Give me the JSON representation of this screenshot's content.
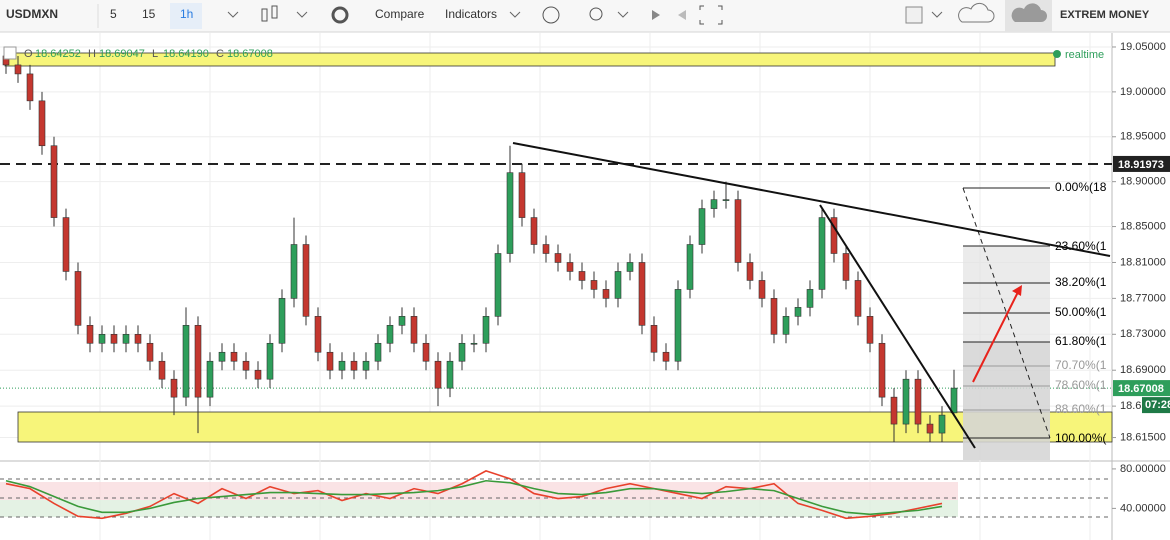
{
  "toolbar": {
    "symbol": "USDMXN",
    "intervals": [
      "5",
      "15",
      "1h"
    ],
    "compare": "Compare",
    "indicators": "Indicators",
    "account": "EXTREM MONEY"
  },
  "ohlc_header": [
    {
      "label": "O",
      "value_label": "18.64252"
    },
    {
      "label": "H",
      "value_label": "18.69047"
    },
    {
      "label": "L",
      "value_label": "18.64190"
    },
    {
      "label": "C",
      "value_label": "18.67008"
    }
  ],
  "realtime": "realtime",
  "fib_labels": [
    "0.00%(18",
    "23.60%(1",
    "38.20%(1",
    "50.00%(1",
    "61.80%(1",
    "70.70%(1",
    "78.60%(1",
    "88.60%(1",
    "100.00%("
  ],
  "chart_data": [
    {
      "type": "candlestick",
      "up_color": "#2e9e5b",
      "down_color": "#c4372f",
      "grid": true,
      "ylim": [
        18.59,
        19.06
      ],
      "yticks": [
        {
          "value": 19.05,
          "label": "19.05000"
        },
        {
          "value": 19.0,
          "label": "19.00000"
        },
        {
          "value": 18.95,
          "label": "18.95000"
        },
        {
          "value": 18.9,
          "label": "18.90000"
        },
        {
          "value": 18.85,
          "label": "18.85000"
        },
        {
          "value": 18.81,
          "label": "18.81000"
        },
        {
          "value": 18.77,
          "label": "18.77000"
        },
        {
          "value": 18.73,
          "label": "18.73000"
        },
        {
          "value": 18.69,
          "label": "18.69000"
        },
        {
          "value": 18.65,
          "label": "18.65000"
        },
        {
          "value": 18.615,
          "label": "18.61500"
        }
      ],
      "open": [
        19.04,
        19.03,
        19.02,
        18.99,
        18.94,
        18.86,
        18.8,
        18.74,
        18.72,
        18.73,
        18.72,
        18.73,
        18.72,
        18.7,
        18.68,
        18.66,
        18.74,
        18.66,
        18.7,
        18.71,
        18.7,
        18.69,
        18.68,
        18.72,
        18.77,
        18.83,
        18.75,
        18.71,
        18.69,
        18.7,
        18.69,
        18.7,
        18.72,
        18.74,
        18.75,
        18.72,
        18.7,
        18.67,
        18.7,
        18.72,
        18.72,
        18.75,
        18.82,
        18.91,
        18.86,
        18.83,
        18.82,
        18.81,
        18.8,
        18.79,
        18.78,
        18.77,
        18.8,
        18.81,
        18.74,
        18.71,
        18.7,
        18.78,
        18.83,
        18.87,
        18.88,
        18.88,
        18.81,
        18.79,
        18.77,
        18.73,
        18.75,
        18.76,
        18.78,
        18.86,
        18.82,
        18.79,
        18.75,
        18.72,
        18.66,
        18.63,
        18.68,
        18.63,
        18.62,
        18.64252
      ],
      "high": [
        19.05,
        19.04,
        19.03,
        19.0,
        18.95,
        18.87,
        18.81,
        18.75,
        18.74,
        18.74,
        18.74,
        18.74,
        18.73,
        18.71,
        18.69,
        18.76,
        18.75,
        18.71,
        18.72,
        18.72,
        18.71,
        18.7,
        18.73,
        18.78,
        18.86,
        18.84,
        18.76,
        18.72,
        18.71,
        18.71,
        18.71,
        18.73,
        18.75,
        18.76,
        18.76,
        18.73,
        18.71,
        18.71,
        18.73,
        18.73,
        18.76,
        18.83,
        18.94,
        18.92,
        18.87,
        18.84,
        18.83,
        18.82,
        18.81,
        18.8,
        18.79,
        18.81,
        18.82,
        18.82,
        18.75,
        18.72,
        18.79,
        18.84,
        18.88,
        18.89,
        18.9,
        18.89,
        18.82,
        18.8,
        18.78,
        18.76,
        18.77,
        18.79,
        18.87,
        18.87,
        18.83,
        18.8,
        18.76,
        18.73,
        18.67,
        18.69,
        18.69,
        18.64,
        18.65,
        18.69047
      ],
      "low": [
        19.02,
        19.01,
        18.98,
        18.93,
        18.85,
        18.79,
        18.73,
        18.71,
        18.71,
        18.71,
        18.71,
        18.71,
        18.69,
        18.67,
        18.64,
        18.65,
        18.62,
        18.65,
        18.69,
        18.69,
        18.68,
        18.67,
        18.67,
        18.71,
        18.76,
        18.74,
        18.7,
        18.68,
        18.68,
        18.68,
        18.68,
        18.69,
        18.71,
        18.73,
        18.71,
        18.69,
        18.65,
        18.66,
        18.69,
        18.71,
        18.71,
        18.74,
        18.81,
        18.85,
        18.82,
        18.81,
        18.8,
        18.79,
        18.78,
        18.77,
        18.76,
        18.76,
        18.79,
        18.73,
        18.7,
        18.69,
        18.69,
        18.77,
        18.82,
        18.86,
        18.87,
        18.8,
        18.78,
        18.76,
        18.72,
        18.72,
        18.74,
        18.75,
        18.77,
        18.81,
        18.78,
        18.74,
        18.71,
        18.65,
        18.61,
        18.62,
        18.62,
        18.61,
        18.61,
        18.6419
      ],
      "close": [
        19.03,
        19.02,
        18.99,
        18.94,
        18.86,
        18.8,
        18.74,
        18.72,
        18.73,
        18.72,
        18.73,
        18.72,
        18.7,
        18.68,
        18.66,
        18.74,
        18.66,
        18.7,
        18.71,
        18.7,
        18.69,
        18.68,
        18.72,
        18.77,
        18.83,
        18.75,
        18.71,
        18.69,
        18.7,
        18.69,
        18.7,
        18.72,
        18.74,
        18.75,
        18.72,
        18.7,
        18.67,
        18.7,
        18.72,
        18.72,
        18.75,
        18.82,
        18.91,
        18.86,
        18.83,
        18.82,
        18.81,
        18.8,
        18.79,
        18.78,
        18.77,
        18.8,
        18.81,
        18.74,
        18.71,
        18.7,
        18.78,
        18.83,
        18.87,
        18.88,
        18.88,
        18.81,
        18.79,
        18.77,
        18.73,
        18.75,
        18.76,
        18.78,
        18.86,
        18.82,
        18.79,
        18.75,
        18.72,
        18.66,
        18.63,
        18.68,
        18.63,
        18.62,
        18.64,
        18.67008
      ],
      "price_lines": [
        {
          "value": 18.91973,
          "color": "#222222",
          "style": "dashed"
        },
        {
          "value": 18.67008,
          "color": "#2e9e5b",
          "style": "dotted",
          "countdown": "07:28"
        }
      ]
    },
    {
      "type": "line",
      "ylim": [
        10,
        87
      ],
      "yticks": [
        {
          "value": 80,
          "label": "80.00000"
        },
        {
          "value": 40,
          "label": "40.00000"
        }
      ],
      "series": [
        {
          "color": "#e8412c",
          "values": [
            65,
            60,
            45,
            32,
            30,
            35,
            42,
            55,
            45,
            60,
            50,
            62,
            55,
            58,
            48,
            55,
            50,
            60,
            55,
            65,
            78,
            70,
            55,
            50,
            52,
            60,
            65,
            60,
            55,
            50,
            62,
            60,
            65,
            45,
            38,
            30,
            32,
            35,
            40,
            45
          ]
        },
        {
          "color": "#3a9a3a",
          "values": [
            68,
            62,
            52,
            42,
            36,
            36,
            40,
            46,
            50,
            52,
            54,
            56,
            56,
            55,
            54,
            54,
            55,
            56,
            58,
            62,
            68,
            66,
            60,
            55,
            54,
            56,
            60,
            60,
            57,
            55,
            57,
            60,
            58,
            50,
            42,
            36,
            34,
            36,
            38,
            42
          ]
        }
      ]
    }
  ]
}
